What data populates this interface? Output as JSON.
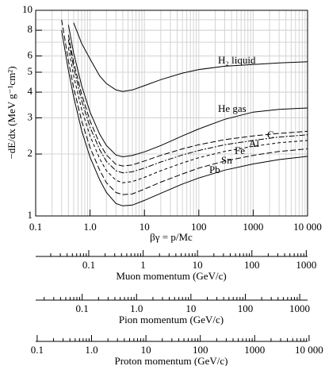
{
  "chart_data": {
    "type": "line",
    "x_label": "βγ = p/Mc",
    "y_label": "−dE/dx (MeV g⁻¹cm²)",
    "log_x": true,
    "log_y": true,
    "grid": true,
    "minor_ticks": true,
    "xlim": [
      0.1,
      10000
    ],
    "ylim": [
      1,
      10
    ],
    "xticks": [
      0.1,
      {
        "value": 1,
        "label": "1.0"
      },
      10,
      100,
      1000,
      {
        "value": 10000,
        "label": "10 000"
      }
    ],
    "yticks": [
      1,
      2,
      3,
      4,
      5,
      6,
      8,
      10
    ],
    "x": [
      0.3,
      0.4,
      0.5,
      0.7,
      1,
      1.5,
      2,
      3,
      4,
      6,
      10,
      20,
      50,
      100,
      300,
      1000,
      3000,
      10000
    ],
    "series": [
      {
        "name": "H₂ liquid",
        "color": "#000000",
        "dash": "solid",
        "values": [
          null,
          null,
          8.7,
          6.9,
          5.8,
          4.8,
          4.4,
          4.1,
          4.03,
          4.1,
          4.3,
          4.6,
          4.95,
          5.15,
          5.35,
          5.45,
          5.55,
          5.62
        ]
      },
      {
        "name": "He gas",
        "color": "#000000",
        "dash": "solid",
        "values": [
          null,
          8.5,
          6.2,
          4.3,
          3.2,
          2.5,
          2.2,
          1.98,
          1.94,
          1.97,
          2.05,
          2.2,
          2.45,
          2.65,
          2.95,
          3.2,
          3.3,
          3.35
        ]
      },
      {
        "name": "C",
        "color": "#000000",
        "dash": "long",
        "values": [
          null,
          7.6,
          5.6,
          3.9,
          2.9,
          2.25,
          1.98,
          1.78,
          1.75,
          1.77,
          1.85,
          1.97,
          2.12,
          2.22,
          2.35,
          2.45,
          2.52,
          2.58
        ]
      },
      {
        "name": "Al",
        "color": "#000000",
        "dash": "dashdot",
        "values": [
          null,
          7.2,
          5.3,
          3.65,
          2.7,
          2.1,
          1.84,
          1.66,
          1.62,
          1.64,
          1.71,
          1.83,
          1.98,
          2.08,
          2.22,
          2.33,
          2.42,
          2.48
        ]
      },
      {
        "name": "Fe",
        "color": "#000000",
        "dash": "short",
        "values": [
          null,
          6.6,
          4.8,
          3.3,
          2.45,
          1.9,
          1.66,
          1.49,
          1.45,
          1.47,
          1.54,
          1.66,
          1.81,
          1.92,
          2.06,
          2.18,
          2.27,
          2.33
        ]
      },
      {
        "name": "Sn",
        "color": "#000000",
        "dash": "long",
        "values": [
          9.0,
          5.7,
          4.2,
          2.9,
          2.15,
          1.67,
          1.45,
          1.3,
          1.27,
          1.28,
          1.35,
          1.46,
          1.6,
          1.71,
          1.85,
          1.97,
          2.06,
          2.12
        ]
      },
      {
        "name": "Pb",
        "color": "#000000",
        "dash": "solid",
        "values": [
          8.0,
          5.1,
          3.8,
          2.6,
          1.93,
          1.5,
          1.3,
          1.15,
          1.12,
          1.13,
          1.19,
          1.29,
          1.43,
          1.53,
          1.67,
          1.79,
          1.88,
          1.95
        ]
      }
    ],
    "momentum_axes": [
      {
        "label": "Muon momentum (GeV/c)",
        "xlim": [
          0.010566,
          1056.6
        ],
        "xticks": [
          0.1,
          1,
          10,
          100,
          1000
        ]
      },
      {
        "label": "Pion momentum (GeV/c)",
        "xlim": [
          0.01396,
          1396
        ],
        "xticks": [
          0.1,
          {
            "value": 1,
            "label": "1.0"
          },
          10,
          100,
          1000
        ]
      },
      {
        "label": "Proton momentum (GeV/c)",
        "xlim": [
          0.09383,
          9383
        ],
        "xticks": [
          0.1,
          {
            "value": 1,
            "label": "1.0"
          },
          10,
          100,
          1000,
          {
            "value": 10000,
            "label": "10 000"
          }
        ]
      }
    ]
  }
}
